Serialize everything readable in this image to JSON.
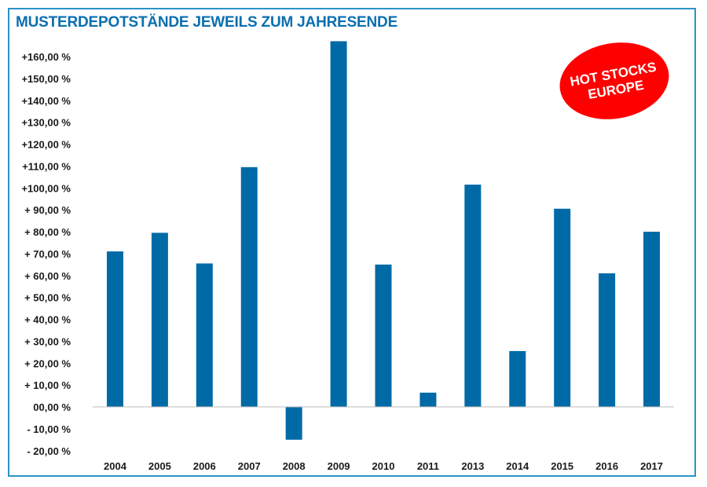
{
  "title": "MUSTERDEPOTSTÄNDE JEWEILS ZUM JAHRESENDE",
  "badge": {
    "line1": "HOT STOCKS",
    "line2": "EUROPE"
  },
  "colors": {
    "bar": "#006aa6",
    "title": "#0a6fb0",
    "frame": "#2a93c7",
    "badge": "#ff0000"
  },
  "chart_data": {
    "type": "bar",
    "title": "MUSTERDEPOTSTÄNDE JEWEILS ZUM JAHRESENDE",
    "xlabel": "",
    "ylabel": "",
    "categories": [
      "2004",
      "2005",
      "2006",
      "2007",
      "2008",
      "2009",
      "2010",
      "2011",
      "2013",
      "2014",
      "2015",
      "2016",
      "2017"
    ],
    "values": [
      71,
      79.5,
      65.5,
      109.5,
      -15,
      167,
      65,
      6.5,
      101.5,
      25.5,
      90.5,
      61,
      80
    ],
    "ylim": [
      -20,
      160
    ],
    "y_tick_labels": [
      {
        "v": 160,
        "label": "+160,00 %"
      },
      {
        "v": 150,
        "label": "+150,00 %"
      },
      {
        "v": 140,
        "label": "+140,00 %"
      },
      {
        "v": 130,
        "label": "+130,00 %"
      },
      {
        "v": 120,
        "label": "+120,00 %"
      },
      {
        "v": 110,
        "label": "+110,00 %"
      },
      {
        "v": 100,
        "label": "+100,00 %"
      },
      {
        "v": 90,
        "label": "+  90,00 %"
      },
      {
        "v": 80,
        "label": "+  80,00 %"
      },
      {
        "v": 70,
        "label": "+  70,00 %"
      },
      {
        "v": 60,
        "label": "+  60,00 %"
      },
      {
        "v": 50,
        "label": "+  50,00 %"
      },
      {
        "v": 40,
        "label": "+  40,00 %"
      },
      {
        "v": 30,
        "label": "+  30,00 %"
      },
      {
        "v": 20,
        "label": "+  20,00 %"
      },
      {
        "v": 10,
        "label": "+  10,00 %"
      },
      {
        "v": 0,
        "label": "00,00 %"
      },
      {
        "v": -10,
        "label": "-  10,00 %"
      },
      {
        "v": -20,
        "label": "-  20,00 %"
      }
    ],
    "grid": false,
    "legend": "none"
  }
}
